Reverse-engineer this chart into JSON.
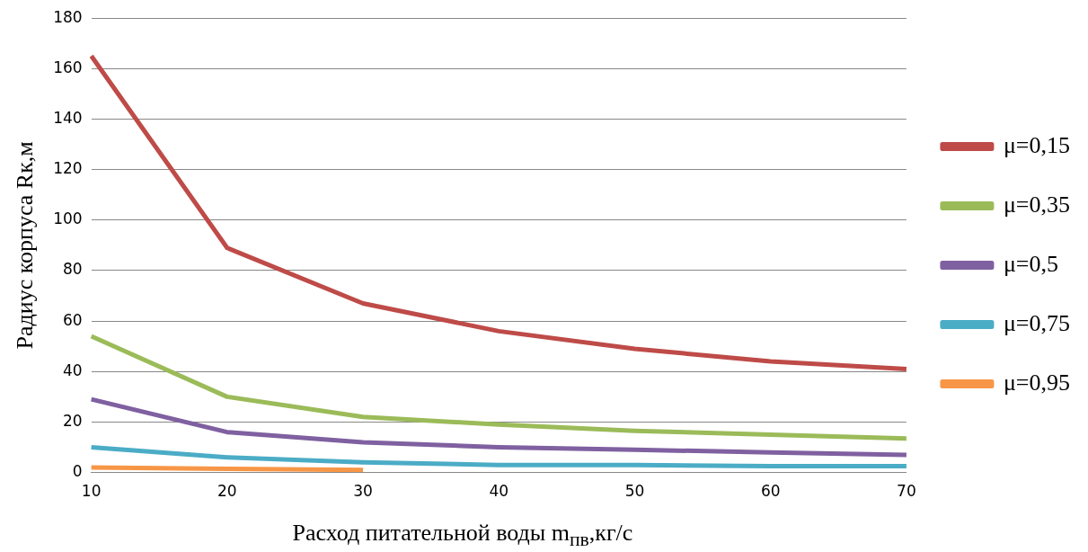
{
  "chart_data": {
    "type": "line",
    "xlabel": "Расход питательной воды m$_{пв}$,кг/с",
    "ylabel": "Радиус корпуса Rк,м",
    "categories": [
      "10",
      "20",
      "30",
      "40",
      "50",
      "60",
      "70"
    ],
    "series": [
      {
        "name": "μ=0,15",
        "color": "#be4b48",
        "values": [
          165,
          89,
          67,
          56,
          49,
          44,
          41
        ]
      },
      {
        "name": "μ=0,35",
        "color": "#9bbb59",
        "values": [
          54,
          30,
          22,
          19,
          16.5,
          15,
          13.5
        ]
      },
      {
        "name": "μ=0,5",
        "color": "#7f60a0",
        "values": [
          29,
          16,
          12,
          10,
          9,
          8,
          7
        ]
      },
      {
        "name": "μ=0,75",
        "color": "#4bacc6",
        "values": [
          10,
          6,
          4,
          3,
          3,
          2.5,
          2.5
        ]
      },
      {
        "name": "μ=0,95",
        "color": "#f79646",
        "values": [
          2,
          1.5,
          1,
          null,
          null,
          null,
          null
        ]
      }
    ],
    "ylim": [
      0,
      180
    ],
    "yticks": [
      0,
      20,
      40,
      60,
      80,
      100,
      120,
      140,
      160,
      180
    ],
    "grid": "y",
    "legend": "right",
    "marker": "none"
  }
}
